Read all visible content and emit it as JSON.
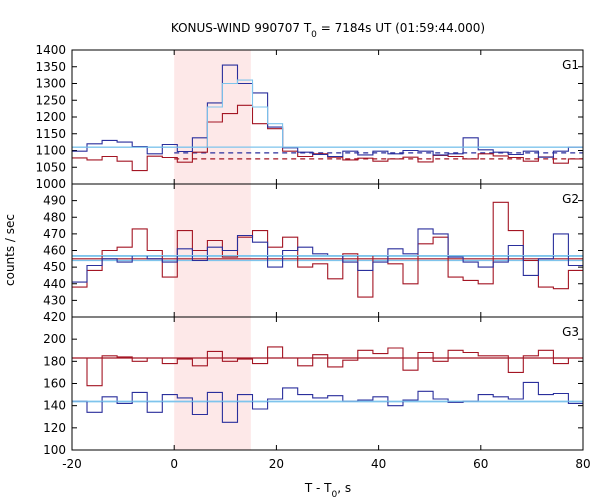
{
  "chart_data": {
    "type": "line",
    "title": "KONUS-WIND 990707 T",
    "title_subscript": "0",
    "title_suffix": " = 7184s UT (01:59:44.000)",
    "xlabel": "T - T",
    "xlabel_subscript": "0",
    "xlabel_suffix": ", s",
    "ylabel": "counts / sec",
    "xlim": [
      -20,
      80
    ],
    "xticks": [
      -20,
      0,
      20,
      40,
      60,
      80
    ],
    "highlight_interval": [
      0,
      15
    ],
    "colors": {
      "red": "#a31523",
      "blue": "#2a2f9c",
      "light": "#7ec4ec",
      "band": "#fde8e8"
    },
    "bins_start": -20,
    "bin_width": 2.944,
    "panels": [
      {
        "label": "G1",
        "ylim": [
          1000,
          1400
        ],
        "yticks": [
          1000,
          1050,
          1100,
          1150,
          1200,
          1250,
          1300,
          1350,
          1400
        ],
        "series": [
          {
            "color": "red",
            "values": [
              1078,
              1072,
              1082,
              1068,
              1040,
              1083,
              1079,
              1065,
              1095,
              1185,
              1210,
              1235,
              1180,
              1165,
              1098,
              1082,
              1090,
              1080,
              1072,
              1077,
              1068,
              1075,
              1080,
              1066,
              1085,
              1082,
              1075,
              1090,
              1084,
              1079,
              1068,
              1081,
              1062,
              1075
            ]
          },
          {
            "color": "blue",
            "values": [
              1098,
              1120,
              1130,
              1125,
              1112,
              1090,
              1118,
              1097,
              1138,
              1242,
              1355,
              1300,
              1272,
              1170,
              1108,
              1095,
              1088,
              1082,
              1098,
              1087,
              1098,
              1090,
              1100,
              1098,
              1087,
              1090,
              1138,
              1102,
              1095,
              1088,
              1098,
              1080,
              1098,
              1110
            ]
          },
          {
            "color": "light",
            "values": [
              1110,
              1110,
              1110,
              1110,
              1110,
              1110,
              1110,
              1110,
              1110,
              1230,
              1300,
              1310,
              1230,
              1180,
              1110,
              1110,
              1110,
              1110,
              1110,
              1110,
              1110,
              1110,
              1110,
              1110,
              1110,
              1110,
              1110,
              1110,
              1110,
              1110,
              1110,
              1110,
              1110,
              1110
            ]
          }
        ],
        "hlines": [
          {
            "color": "light",
            "value": 1110,
            "dashed": false
          },
          {
            "color": "blue",
            "value": 1093,
            "dashed": true,
            "from": 0,
            "to": 80
          },
          {
            "color": "red",
            "value": 1075,
            "dashed": true,
            "from": 0,
            "to": 80
          }
        ]
      },
      {
        "label": "G2",
        "ylim": [
          420,
          500
        ],
        "yticks": [
          420,
          430,
          440,
          450,
          460,
          470,
          480,
          490
        ],
        "series": [
          {
            "color": "red",
            "values": [
              438,
              448,
              460,
              462,
              473,
              460,
              444,
              472,
              460,
              466,
              456,
              468,
              472,
              462,
              468,
              450,
              452,
              443,
              458,
              432,
              457,
              452,
              440,
              464,
              468,
              444,
              442,
              440,
              489,
              472,
              454,
              438,
              437,
              448
            ]
          },
          {
            "color": "blue",
            "values": [
              441,
              451,
              455,
              453,
              457,
              455,
              453,
              461,
              454,
              462,
              460,
              469,
              465,
              450,
              460,
              462,
              458,
              457,
              453,
              448,
              453,
              461,
              458,
              473,
              470,
              456,
              453,
              450,
              453,
              463,
              445,
              455,
              470,
              451
            ]
          },
          {
            "color": "light",
            "values": [
              457,
              457,
              457,
              457,
              457,
              457,
              457,
              457,
              457,
              457,
              457,
              457,
              457,
              457,
              457,
              457,
              457,
              457,
              457,
              457,
              457,
              457,
              457,
              457,
              457,
              457,
              457,
              457,
              457,
              457,
              457,
              457,
              457,
              457
            ]
          }
        ],
        "hlines": [
          {
            "color": "light",
            "value": 456.5,
            "dashed": false
          },
          {
            "color": "light",
            "value": 454,
            "dashed": false
          },
          {
            "color": "red",
            "value": 455,
            "dashed": false
          }
        ]
      },
      {
        "label": "G3",
        "ylim": [
          100,
          220
        ],
        "yticks": [
          100,
          120,
          140,
          160,
          180,
          200
        ],
        "series": [
          {
            "color": "red",
            "values": [
              183,
              158,
              185,
              184,
              180,
              183,
              178,
              182,
              176,
              189,
              180,
              182,
              178,
              193,
              183,
              176,
              186,
              175,
              181,
              190,
              187,
              192,
              172,
              188,
              180,
              190,
              188,
              185,
              185,
              170,
              185,
              190,
              178,
              183
            ]
          },
          {
            "color": "blue",
            "values": [
              144,
              134,
              148,
              142,
              152,
              134,
              150,
              147,
              132,
              152,
              125,
              150,
              137,
              146,
              156,
              150,
              147,
              149,
              144,
              145,
              148,
              140,
              145,
              153,
              146,
              143,
              144,
              150,
              148,
              146,
              161,
              150,
              151,
              142
            ]
          },
          {
            "color": "light",
            "values": [
              144,
              144,
              144,
              144,
              144,
              144,
              144,
              144,
              144,
              144,
              144,
              144,
              144,
              144,
              144,
              144,
              144,
              144,
              144,
              144,
              144,
              144,
              144,
              144,
              144,
              144,
              144,
              144,
              144,
              144,
              144,
              144,
              144,
              144
            ]
          }
        ],
        "hlines": [
          {
            "color": "light",
            "value": 143.5,
            "dashed": false
          },
          {
            "color": "red",
            "value": 183,
            "dashed": false
          }
        ]
      }
    ]
  }
}
